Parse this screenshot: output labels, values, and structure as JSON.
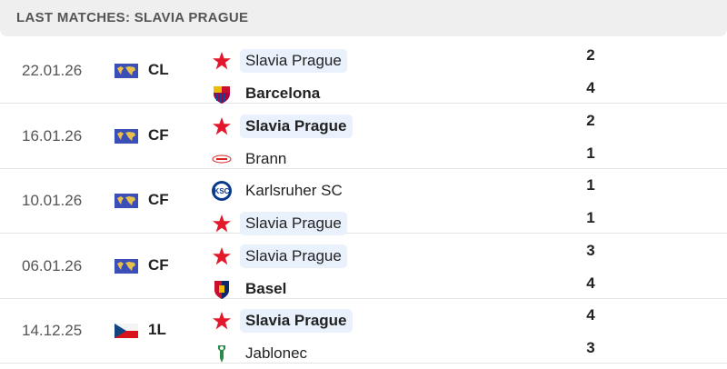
{
  "header": {
    "title": "LAST MATCHES: SLAVIA PRAGUE"
  },
  "colors": {
    "highlight": "#e9f2fc",
    "slavia_red": "#e3192b"
  },
  "matches": [
    {
      "date": "22.01.26",
      "competition": "CL",
      "comp_icon": "world-map-icon",
      "home": {
        "name": "Slavia Prague",
        "logo": "slavia-star-icon",
        "score": "2",
        "highlight": true,
        "winner": false
      },
      "away": {
        "name": "Barcelona",
        "logo": "barcelona-crest-icon",
        "score": "4",
        "highlight": false,
        "winner": true
      }
    },
    {
      "date": "16.01.26",
      "competition": "CF",
      "comp_icon": "world-map-icon",
      "home": {
        "name": "Slavia Prague",
        "logo": "slavia-star-icon",
        "score": "2",
        "highlight": true,
        "winner": true
      },
      "away": {
        "name": "Brann",
        "logo": "brann-crest-icon",
        "score": "1",
        "highlight": false,
        "winner": false
      }
    },
    {
      "date": "10.01.26",
      "competition": "CF",
      "comp_icon": "world-map-icon",
      "home": {
        "name": "Karlsruher SC",
        "logo": "ksc-crest-icon",
        "score": "1",
        "highlight": false,
        "winner": false
      },
      "away": {
        "name": "Slavia Prague",
        "logo": "slavia-star-icon",
        "score": "1",
        "highlight": true,
        "winner": false
      }
    },
    {
      "date": "06.01.26",
      "competition": "CF",
      "comp_icon": "world-map-icon",
      "home": {
        "name": "Slavia Prague",
        "logo": "slavia-star-icon",
        "score": "3",
        "highlight": true,
        "winner": false
      },
      "away": {
        "name": "Basel",
        "logo": "basel-crest-icon",
        "score": "4",
        "highlight": false,
        "winner": true
      }
    },
    {
      "date": "14.12.25",
      "competition": "1L",
      "comp_icon": "czech-flag-icon",
      "home": {
        "name": "Slavia Prague",
        "logo": "slavia-star-icon",
        "score": "4",
        "highlight": true,
        "winner": true
      },
      "away": {
        "name": "Jablonec",
        "logo": "jablonec-crest-icon",
        "score": "3",
        "highlight": false,
        "winner": false
      }
    }
  ]
}
